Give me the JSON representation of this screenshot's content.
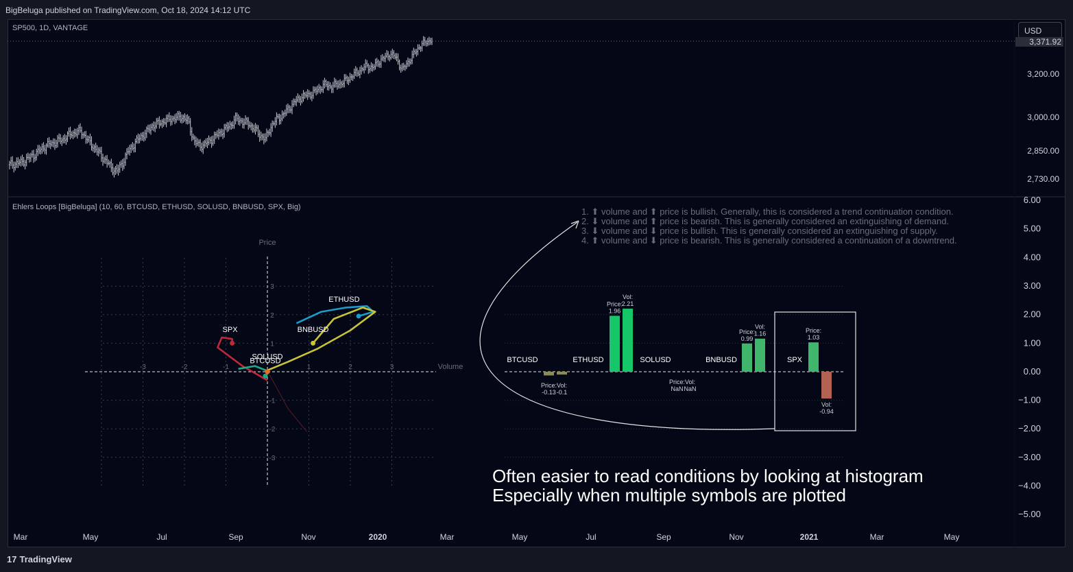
{
  "header": {
    "published_text": "BigBeluga published on TradingView.com, Oct 18, 2024 14:12 UTC"
  },
  "footer": {
    "logo_text": "TradingView"
  },
  "main_chart": {
    "legend": "SP500, 1D, VANTAGE",
    "currency_button": "USD",
    "last_price_label": "3,371.92",
    "price_axis": [
      "3,200.00",
      "3,000.00",
      "2,850.00",
      "2,730.00"
    ]
  },
  "indicator": {
    "legend": "Ehlers Loops [BigBeluga] (10, 60, BTCUSD, ETHUSD, SOLUSD, BNBUSD, SPX, Big)",
    "price_axis": [
      "6.00",
      "5.00",
      "4.00",
      "3.00",
      "2.00",
      "1.00",
      "0.00",
      "−1.00",
      "−2.00",
      "−3.00",
      "−4.00",
      "−5.00"
    ]
  },
  "time_axis": {
    "labels": [
      "Mar",
      "May",
      "Jul",
      "Sep",
      "Nov",
      "2020",
      "Mar",
      "May",
      "Jul",
      "Sep",
      "Nov",
      "2021",
      "Mar",
      "May"
    ]
  },
  "conditions": [
    "1. ⬆ volume and ⬆ price is bullish.  Generally, this is considered a trend continuation condition.",
    "2. ⬇ volume and ⬆ price is bearish. This is generally considered an extinguishing of demand.",
    "3. ⬇ volume and ⬇ price is bullish.  This is generally considered an extinguishing of supply.",
    "4. ⬆ volume and ⬇ price is bearish. This is generally considered a continuation of a downtrend."
  ],
  "caption": {
    "line1": "Often easier to read conditions by looking at histogram",
    "line2": "Especially when multiple symbols are plotted"
  },
  "chart_data": [
    {
      "type": "line",
      "series": [
        {
          "name": "SP500",
          "values": [
            2790,
            2795,
            2800,
            2815,
            2830,
            2850,
            2870,
            2880,
            2890,
            2900,
            2920,
            2930,
            2935,
            2900,
            2870,
            2840,
            2810,
            2780,
            2760,
            2800,
            2850,
            2880,
            2910,
            2930,
            2960,
            2970,
            2980,
            2990,
            2995,
            3000,
            2980,
            2890,
            2870,
            2880,
            2900,
            2920,
            2940,
            2960,
            2990,
            2980,
            2970,
            2950,
            2920,
            2900,
            2960,
            2990,
            3010,
            3040,
            3070,
            3090,
            3100,
            3110,
            3130,
            3150,
            3140,
            3150,
            3160,
            3180,
            3200,
            3220,
            3240,
            3230,
            3260,
            3280,
            3300,
            3280,
            3220,
            3260,
            3300,
            3340,
            3360,
            3371.92
          ]
        }
      ],
      "last_value": 3371.92
    },
    {
      "type": "scatter",
      "title": "",
      "xlabel": "Volume",
      "ylabel": "Price",
      "xlim": [
        -3.5,
        3.5
      ],
      "ylim": [
        -3.5,
        3.5
      ],
      "x_ticks": [
        -3,
        -2,
        -1,
        1,
        2,
        3
      ],
      "y_ticks": [
        3,
        2,
        1,
        -1,
        -2,
        -3
      ],
      "series": [
        {
          "name": "ETHUSD",
          "color": "#1d9bc9",
          "points": [
            [
              0.7,
              1.7
            ],
            [
              1.3,
              2.1
            ],
            [
              1.9,
              2.25
            ],
            [
              2.4,
              2.3
            ],
            [
              2.55,
              2.1
            ],
            [
              2.2,
              1.95
            ]
          ]
        },
        {
          "name": "BNBUSD",
          "color": "#c8c43a",
          "points": [
            [
              0.0,
              0.05
            ],
            [
              0.5,
              0.35
            ],
            [
              1.2,
              0.8
            ],
            [
              2.0,
              1.45
            ],
            [
              2.6,
              2.1
            ],
            [
              2.3,
              2.25
            ],
            [
              1.6,
              1.85
            ],
            [
              1.1,
              1.0
            ]
          ]
        },
        {
          "name": "SPX",
          "color": "#c0273a",
          "points": [
            [
              0.0,
              -0.3
            ],
            [
              -0.6,
              0.2
            ],
            [
              -1.2,
              0.85
            ],
            [
              -1.1,
              1.2
            ],
            [
              -0.85,
              1.15
            ],
            [
              -0.85,
              1.0
            ]
          ]
        },
        {
          "name": "SOLUSD",
          "color": "#1fa88a",
          "points": [
            [
              -0.7,
              0.1
            ],
            [
              -0.3,
              0.2
            ],
            [
              0.05,
              0.0
            ],
            [
              -0.05,
              -0.15
            ]
          ]
        },
        {
          "name": "BTCUSD",
          "color": "#f06a1d",
          "points": [
            [
              -0.05,
              0.05
            ],
            [
              0.0,
              0.0
            ]
          ]
        }
      ],
      "label_positions": {
        "ETHUSD": [
          1.85,
          2.45
        ],
        "BNBUSD": [
          1.1,
          1.4
        ],
        "SPX": [
          -0.9,
          1.4
        ],
        "SOLUSD": [
          0.0,
          0.45
        ],
        "BTCUSD": [
          -0.05,
          0.3
        ]
      }
    },
    {
      "type": "bar",
      "categories": [
        "BTCUSD",
        "ETHUSD",
        "SOLUSD",
        "BNBUSD",
        "SPX"
      ],
      "series": [
        {
          "name": "Price",
          "values": [
            -0.13,
            1.96,
            null,
            0.99,
            1.03
          ]
        },
        {
          "name": "Vol",
          "values": [
            -0.1,
            2.21,
            null,
            1.16,
            -0.94
          ]
        }
      ],
      "value_labels": {
        "BTCUSD": [
          "-0.13",
          "-0.1"
        ],
        "ETHUSD": [
          "1.96",
          "2.21"
        ],
        "SOLUSD": [
          "NaN",
          "NaN"
        ],
        "BNBUSD": [
          "0.99",
          "1.16"
        ],
        "SPX": [
          "1.03",
          "-0.94"
        ]
      },
      "label_texts": {
        "price": "Price:",
        "vol": "Vol:"
      },
      "ylim": [
        -3,
        3
      ],
      "colors": {
        "positive": "#16c76a",
        "positive_small": "#3fb66b",
        "negative": "#8b8b5a",
        "negative_strong": "#b36152"
      }
    }
  ]
}
